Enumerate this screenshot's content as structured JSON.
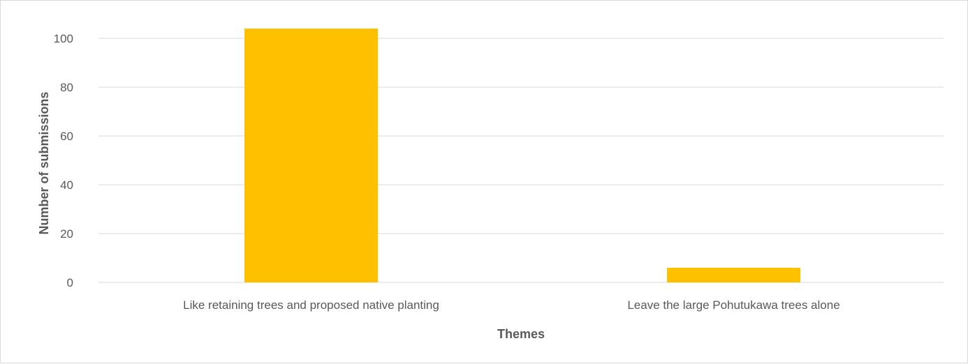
{
  "chart_data": {
    "type": "bar",
    "title": "",
    "xlabel": "Themes",
    "ylabel": "Number of submissions",
    "categories": [
      "Like retaining trees and proposed native planting",
      "Leave the large Pohutukawa trees alone"
    ],
    "values": [
      104,
      6
    ],
    "ylim": [
      0,
      100
    ],
    "yticks": [
      "0",
      "20",
      "40",
      "60",
      "80",
      "100"
    ],
    "grid": true,
    "legend": "none",
    "colors": {
      "bar": "#FFC000",
      "grid": "#d9d9d9",
      "text": "#595959"
    }
  }
}
